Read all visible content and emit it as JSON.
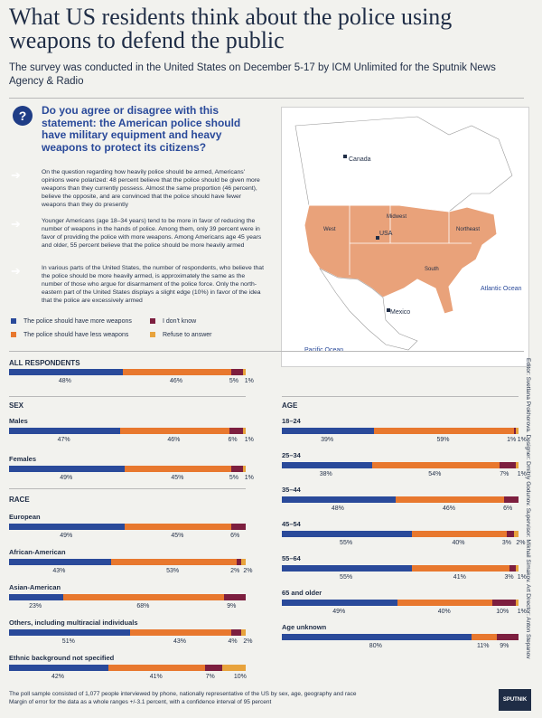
{
  "title": "What US residents think about the police using weapons to defend the public",
  "subtitle": "The survey was conducted in the United States on December 5-17 by ICM Unlimited for the Sputnik News Agency & Radio",
  "question_mark": "?",
  "question": "Do you agree or disagree with this statement: the American police should have military equipment and heavy weapons to protect its citizens?",
  "notes": [
    "On the question regarding how heavily police should be armed, Americans' opinions were polarized: 48 percent believe that the police should be given more weapons than they currently possess. Almost the same proportion (46 percent), believe the opposite, and are convinced that the police should have fewer weapons than they do presently",
    "Younger Americans (age 18–34 years) tend to be more in favor of reducing the number of weapons in the hands of police. Among them, only 39 percent were in favor of providing the police with more weapons. Among Americans age 45 years and older, 55 percent believe that the police should be more heavily armed",
    "In various parts of the United States, the number of respondents, who believe that the police should be more heavily armed, is approximately the same as the number of those who argue for disarmament of the police force. Only the north-eastern part of the United States displays a slight edge (10%) in favor of the idea that the police are excessively armed"
  ],
  "map": {
    "labels": [
      "Canada",
      "USA",
      "Mexico",
      "West",
      "Midwest",
      "Northeast",
      "South",
      "Atlantic Ocean",
      "Pacific Ocean"
    ]
  },
  "legend": {
    "more": "The police should have more weapons",
    "less": "The police should have less weapons",
    "dontknow": "I don't know",
    "refuse": "Refuse to answer"
  },
  "colors": {
    "more": "#2a4a9a",
    "less": "#e8782e",
    "dontknow": "#7d1f3f",
    "refuse": "#e8a33c",
    "land": "#e9a27a",
    "water": "#ffffff"
  },
  "sections": {
    "all": "ALL RESPONDENTS",
    "sex": "SEX",
    "race": "RACE",
    "age": "AGE"
  },
  "chart_data": {
    "type": "bar",
    "stacked": true,
    "series_names": [
      "The police should have more weapons",
      "The police should have less weapons",
      "I don't know",
      "Refuse to answer"
    ],
    "groups": [
      {
        "label": "ALL RESPONDENTS",
        "rows": [
          {
            "label": "",
            "values": [
              48,
              46,
              5,
              1
            ],
            "texts": [
              "48%",
              "46%",
              "5%",
              "1%"
            ]
          }
        ]
      },
      {
        "label": "SEX",
        "rows": [
          {
            "label": "Males",
            "values": [
              47,
              46,
              6,
              1
            ],
            "texts": [
              "47%",
              "46%",
              "6%",
              "1%"
            ]
          },
          {
            "label": "Females",
            "values": [
              49,
              45,
              5,
              1
            ],
            "texts": [
              "49%",
              "45%",
              "5%",
              "1%"
            ]
          }
        ]
      },
      {
        "label": "RACE",
        "rows": [
          {
            "label": "European",
            "values": [
              49,
              45,
              6,
              0
            ],
            "texts": [
              "49%",
              "45%",
              "6%",
              ""
            ]
          },
          {
            "label": "African-American",
            "values": [
              43,
              53,
              2,
              2
            ],
            "texts": [
              "43%",
              "53%",
              "2%",
              "2%"
            ]
          },
          {
            "label": "Asian-American",
            "values": [
              23,
              68,
              9,
              0
            ],
            "texts": [
              "23%",
              "68%",
              "9%",
              ""
            ]
          },
          {
            "label": "Others, including multiracial individuals",
            "values": [
              51,
              43,
              4,
              2
            ],
            "texts": [
              "51%",
              "43%",
              "4%",
              "2%"
            ]
          },
          {
            "label": "Ethnic background not specified",
            "values": [
              42,
              41,
              7,
              10
            ],
            "texts": [
              "42%",
              "41%",
              "7%",
              "10%"
            ]
          }
        ]
      },
      {
        "label": "AGE",
        "rows": [
          {
            "label": "18–24",
            "values": [
              39,
              59,
              1,
              1
            ],
            "texts": [
              "39%",
              "59%",
              "1%",
              "1%"
            ]
          },
          {
            "label": "25–34",
            "values": [
              38,
              54,
              7,
              1
            ],
            "texts": [
              "38%",
              "54%",
              "7%",
              "1%"
            ]
          },
          {
            "label": "35–44",
            "values": [
              48,
              46,
              6,
              0
            ],
            "texts": [
              "48%",
              "46%",
              "6%",
              ""
            ]
          },
          {
            "label": "45–54",
            "values": [
              55,
              40,
              3,
              2
            ],
            "texts": [
              "55%",
              "40%",
              "3%",
              "2%"
            ]
          },
          {
            "label": "55–64",
            "values": [
              55,
              41,
              3,
              1
            ],
            "texts": [
              "55%",
              "41%",
              "3%",
              "1%"
            ]
          },
          {
            "label": "65 and older",
            "values": [
              49,
              40,
              10,
              1
            ],
            "texts": [
              "49%",
              "40%",
              "10%",
              "1%"
            ]
          },
          {
            "label": "Age unknown",
            "values": [
              80,
              11,
              9,
              0
            ],
            "texts": [
              "80%",
              "11%",
              "9%",
              ""
            ]
          }
        ]
      }
    ]
  },
  "footer": "The poll sample consisted of 1,077 people interviewed by phone, nationally representative of the US by sex, age, geography and race\nMargin of error for the data as a whole ranges +/-3.1 percent, with a confidence interval of 95 percent",
  "credits": "Editor: Svetlana Prokhorova. Designer: Dmitriy Godunov. Supervisor: Mikhail Simakov. Art Director: Anton Stepanov",
  "logo": "SPUTNIK"
}
